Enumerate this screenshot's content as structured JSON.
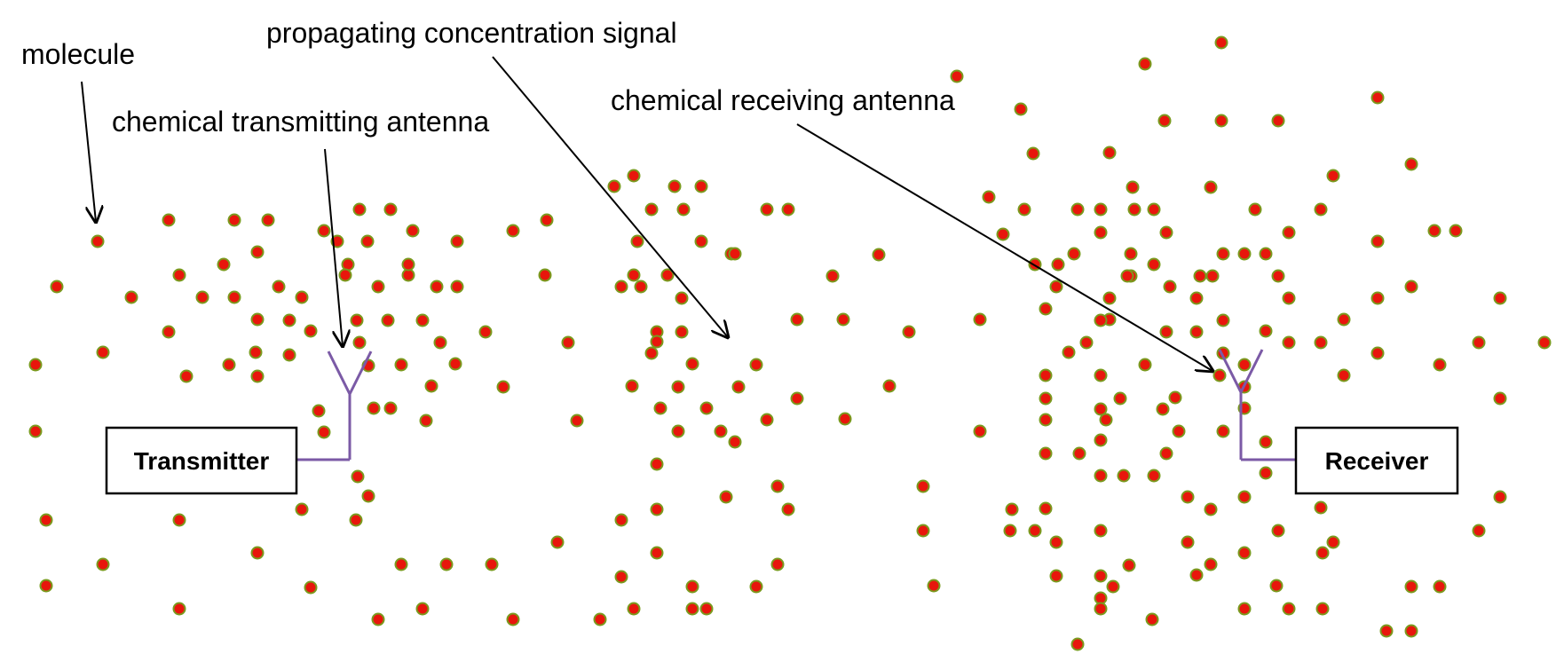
{
  "labels": {
    "molecule": "molecule",
    "signal": "propagating concentration signal",
    "tx_antenna": "chemical transmitting antenna",
    "rx_antenna": "chemical receiving antenna"
  },
  "boxes": {
    "transmitter": "Transmitter",
    "receiver": "Receiver"
  },
  "colors": {
    "molecule_fill": "#e8160c",
    "molecule_ring": "#7a9a1e",
    "antenna": "#7b5aa6",
    "arrow": "#000000"
  }
}
